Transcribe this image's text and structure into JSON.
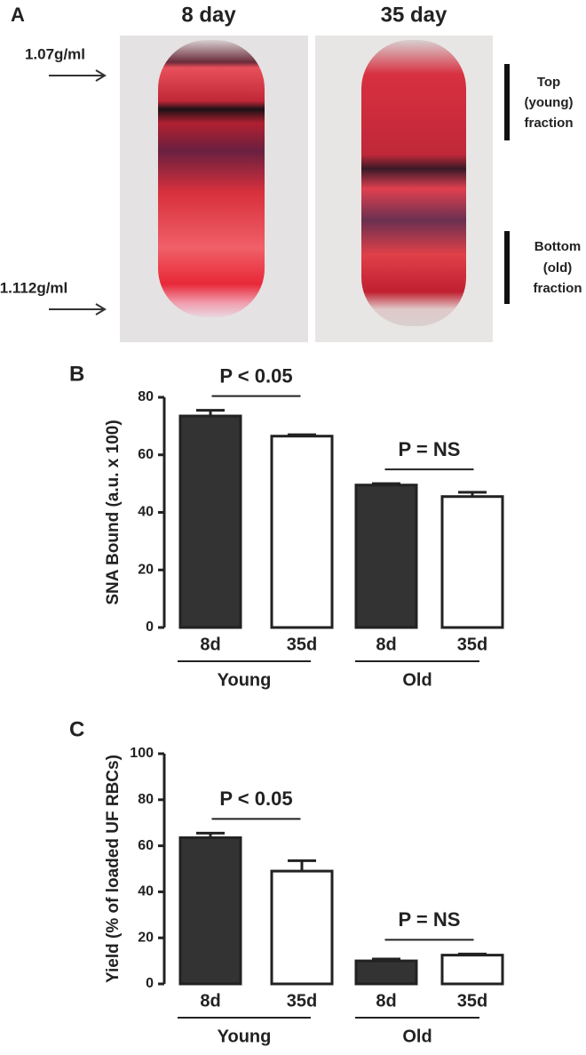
{
  "panel_a": {
    "label": "A",
    "columns": [
      "8 day",
      "35 day"
    ],
    "densities": [
      "1.07g/ml",
      "1.112g/ml"
    ],
    "fractions": [
      [
        "Top",
        "(young)",
        "fraction"
      ],
      [
        "Bottom",
        "(old)",
        "fraction"
      ]
    ]
  },
  "chart_data": [
    {
      "type": "bar",
      "panel_label": "B",
      "y_label": "SNA Bound (a.u. x 100)",
      "categories": [
        "8d",
        "35d",
        "8d",
        "35d"
      ],
      "groups": [
        "Young",
        "Old"
      ],
      "values": [
        73.5,
        66.5,
        49.5,
        45.5
      ],
      "errors": [
        2,
        0.5,
        0.5,
        1.5
      ],
      "colors": [
        "#333333",
        "#ffffff",
        "#333333",
        "#ffffff"
      ],
      "annotations": [
        "P < 0.05",
        "P = NS"
      ],
      "ylim": [
        0,
        80
      ],
      "yticks": [
        0,
        20,
        40,
        60,
        80
      ]
    },
    {
      "type": "bar",
      "panel_label": "C",
      "y_label": "Yield (% of loaded UF RBCs)",
      "categories": [
        "8d",
        "35d",
        "8d",
        "35d"
      ],
      "groups": [
        "Young",
        "Old"
      ],
      "values": [
        63.5,
        49,
        10,
        12.5
      ],
      "errors": [
        2,
        4.5,
        0.8,
        0.5
      ],
      "colors": [
        "#333333",
        "#ffffff",
        "#333333",
        "#ffffff"
      ],
      "annotations": [
        "P < 0.05",
        "P = NS"
      ],
      "ylim": [
        0,
        100
      ],
      "yticks": [
        0,
        20,
        40,
        60,
        80,
        100
      ]
    }
  ]
}
